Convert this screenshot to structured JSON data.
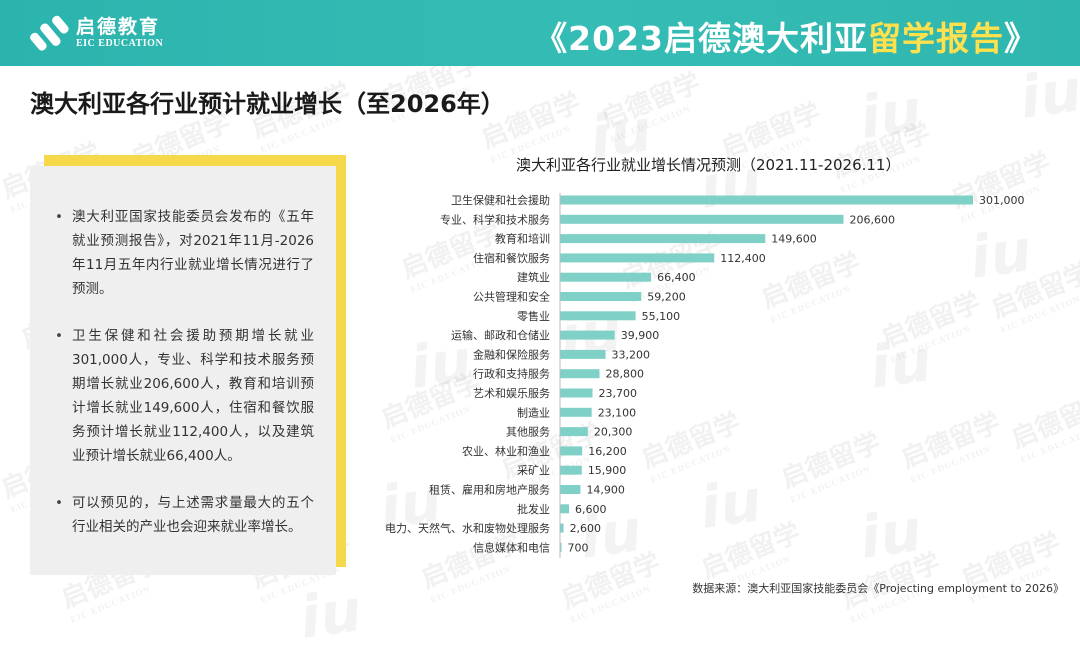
{
  "header": {
    "logo_cn": "启德教育",
    "logo_en": "EIC EDUCATION",
    "title_prefix": "《2023启德澳大利亚",
    "title_highlight": "留学报告",
    "title_suffix": "》",
    "colors": {
      "band": "#2fb6ae",
      "highlight": "#ffe04d"
    }
  },
  "page_title": "澳大利亚各行业预计就业增长（至2026年）",
  "bullets": [
    "澳大利亚国家技能委员会发布的《五年就业预测报告》，对2021年11月-2026年11月五年内行业就业增长情况进行了预测。",
    "卫生保健和社会援助预期增长就业301,000人，专业、科学和技术服务预期增长就业206,600人，教育和培训预计增长就业149,600人，住宿和餐饮服务预计增长就业112,400人，以及建筑业预计增长就业66,400人。",
    "可以预见的，与上述需求量最大的五个行业相关的产业也会迎来就业率增长。"
  ],
  "watermark": {
    "cn": "启德留学",
    "en": "EIC EDUCATION",
    "mark": "iu"
  },
  "chart_data": {
    "type": "bar",
    "orientation": "horizontal",
    "title": "澳大利亚各行业就业增长情况预测（2021.11-2026.11）",
    "categories": [
      "卫生保健和社会援助",
      "专业、科学和技术服务",
      "教育和培训",
      "住宿和餐饮服务",
      "建筑业",
      "公共管理和安全",
      "零售业",
      "运输、邮政和仓储业",
      "金融和保险服务",
      "行政和支持服务",
      "艺术和娱乐服务",
      "制造业",
      "其他服务",
      "农业、林业和渔业",
      "采矿业",
      "租赁、雇用和房地产服务",
      "批发业",
      "电力、天然气、水和废物处理服务",
      "信息媒体和电信"
    ],
    "values": [
      301000,
      206600,
      149600,
      112400,
      66400,
      59200,
      55100,
      39900,
      33200,
      28800,
      23700,
      23100,
      20300,
      16200,
      15900,
      14900,
      6600,
      2600,
      700
    ],
    "labels": [
      "301,000",
      "206,600",
      "149,600",
      "112,400",
      "66,400",
      "59,200",
      "55,100",
      "39,900",
      "33,200",
      "28,800",
      "23,700",
      "23,100",
      "20,300",
      "16,200",
      "15,900",
      "14,900",
      "6,600",
      "2,600",
      "700"
    ],
    "bar_color": "#7fd1c8",
    "xlim": [
      0,
      301000
    ],
    "grid": false
  },
  "source": "数据来源：澳大利亚国家技能委员会《Projecting employment to 2026》"
}
